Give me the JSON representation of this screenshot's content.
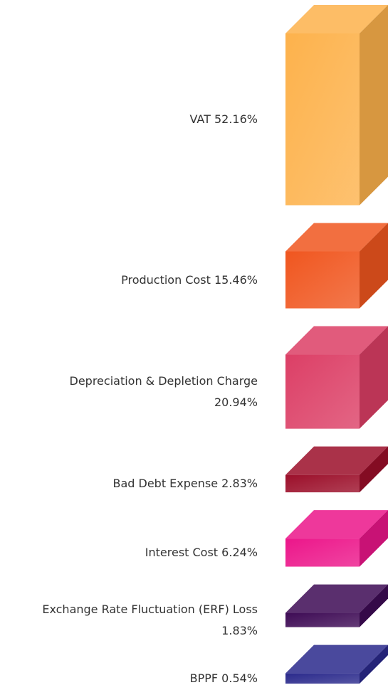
{
  "chart_data": {
    "type": "bar",
    "categories": [
      "VAT",
      "Production Cost",
      "Depreciation & Depletion Charge",
      "Bad Debt Expense",
      "Interest Cost",
      "Exchange Rate Fluctuation (ERF) Loss",
      "BPPF"
    ],
    "values": [
      52.16,
      15.46,
      20.94,
      2.83,
      6.24,
      1.83,
      0.54
    ],
    "value_labels": [
      "52.16%",
      "15.46%",
      "20.94%",
      "2.83%",
      "6.24%",
      "1.83%",
      "0.54%"
    ],
    "colors": [
      "#fdb24c",
      "#f0561f",
      "#dc3f66",
      "#9c0f2a",
      "#ec168a",
      "#3e0b55",
      "#2b2a8c"
    ]
  }
}
